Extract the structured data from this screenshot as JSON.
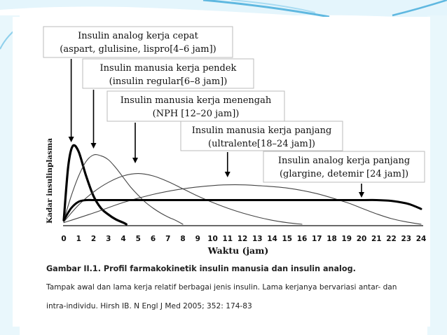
{
  "chart_data": {
    "type": "line",
    "xlabel": "Waktu (jam)",
    "ylabel": "Kadar insulinplasma",
    "xlim": [
      0,
      24
    ],
    "ylim": [
      0,
      1
    ],
    "x_ticks": [
      "0",
      "1",
      "2",
      "3",
      "4",
      "5",
      "6",
      "7",
      "8",
      "9",
      "10",
      "11",
      "12",
      "13",
      "14",
      "15",
      "16",
      "17",
      "18",
      "19",
      "20",
      "21",
      "22",
      "23",
      "24"
    ],
    "grid": false,
    "annotations": [
      {
        "line1": "Insulin analog kerja cepat",
        "line2": "(aspart, glulisine, lispro[4–6 jam])",
        "arrow_x": 0.5
      },
      {
        "line1": "Insulin manusia kerja pendek",
        "line2": "(insulin regular[6–8 jam])",
        "arrow_x": 2
      },
      {
        "line1": "Insulin manusia kerja menengah",
        "line2": "(NPH  [12–20 jam])",
        "arrow_x": 4.8
      },
      {
        "line1": "Insulin manusia kerja panjang",
        "line2": "(ultralente[18–24 jam])",
        "arrow_x": 11
      },
      {
        "line1": "Insulin analog kerja  panjang",
        "line2": "(glargine, detemir [24 jam])",
        "arrow_x": 20
      }
    ],
    "series": [
      {
        "x": [
          0,
          0.3,
          0.6,
          1,
          1.5,
          2,
          2.5,
          3,
          3.5,
          4,
          4.2
        ],
        "y": [
          0.05,
          0.72,
          0.97,
          0.9,
          0.6,
          0.35,
          0.2,
          0.12,
          0.06,
          0.02,
          0.0
        ]
      },
      {
        "x": [
          0,
          0.5,
          1,
          1.5,
          2,
          2.5,
          3,
          3.5,
          4,
          4.5,
          5,
          5.5,
          6,
          6.5,
          7,
          7.5,
          8
        ],
        "y": [
          0.05,
          0.35,
          0.6,
          0.78,
          0.86,
          0.85,
          0.8,
          0.7,
          0.58,
          0.46,
          0.36,
          0.27,
          0.2,
          0.14,
          0.09,
          0.05,
          0.0
        ]
      },
      {
        "x": [
          0,
          1,
          2,
          3,
          4,
          5,
          6,
          7,
          8,
          9,
          10,
          11,
          12,
          13,
          14,
          15,
          16
        ],
        "y": [
          0.03,
          0.24,
          0.4,
          0.52,
          0.6,
          0.63,
          0.6,
          0.53,
          0.44,
          0.35,
          0.27,
          0.2,
          0.14,
          0.09,
          0.05,
          0.02,
          0.0
        ]
      },
      {
        "x": [
          0,
          2,
          4,
          6,
          8,
          10,
          11.5,
          13,
          15,
          17,
          19,
          20,
          21,
          22,
          23,
          24
        ],
        "y": [
          0.02,
          0.14,
          0.27,
          0.37,
          0.44,
          0.48,
          0.49,
          0.48,
          0.45,
          0.38,
          0.27,
          0.2,
          0.13,
          0.07,
          0.03,
          0.0
        ]
      },
      {
        "x": [
          0,
          0.5,
          1,
          1.5,
          2,
          3,
          5,
          8,
          12,
          16,
          20,
          21,
          22,
          23,
          23.5,
          24
        ],
        "y": [
          0.05,
          0.2,
          0.28,
          0.3,
          0.3,
          0.3,
          0.3,
          0.3,
          0.3,
          0.3,
          0.3,
          0.3,
          0.29,
          0.26,
          0.23,
          0.19
        ]
      }
    ]
  },
  "caption": {
    "title": "Gambar II.1. Profil farmakokinetik insulin manusia dan insulin analog.",
    "line1": "Tampak awal dan lama kerja relatif berbagai jenis insulin. Lama kerjanya bervariasi antar- dan",
    "line2": "intra-individu. Hirsh IB. N Engl J Med 2005; 352: 174-83"
  },
  "colors": {
    "slide_bg": "#ffffff",
    "band_blue": "#dff3fb",
    "swoosh_blue": "#5fb8e0",
    "curve_dark": "#000000",
    "curve_thin": "#444444"
  }
}
